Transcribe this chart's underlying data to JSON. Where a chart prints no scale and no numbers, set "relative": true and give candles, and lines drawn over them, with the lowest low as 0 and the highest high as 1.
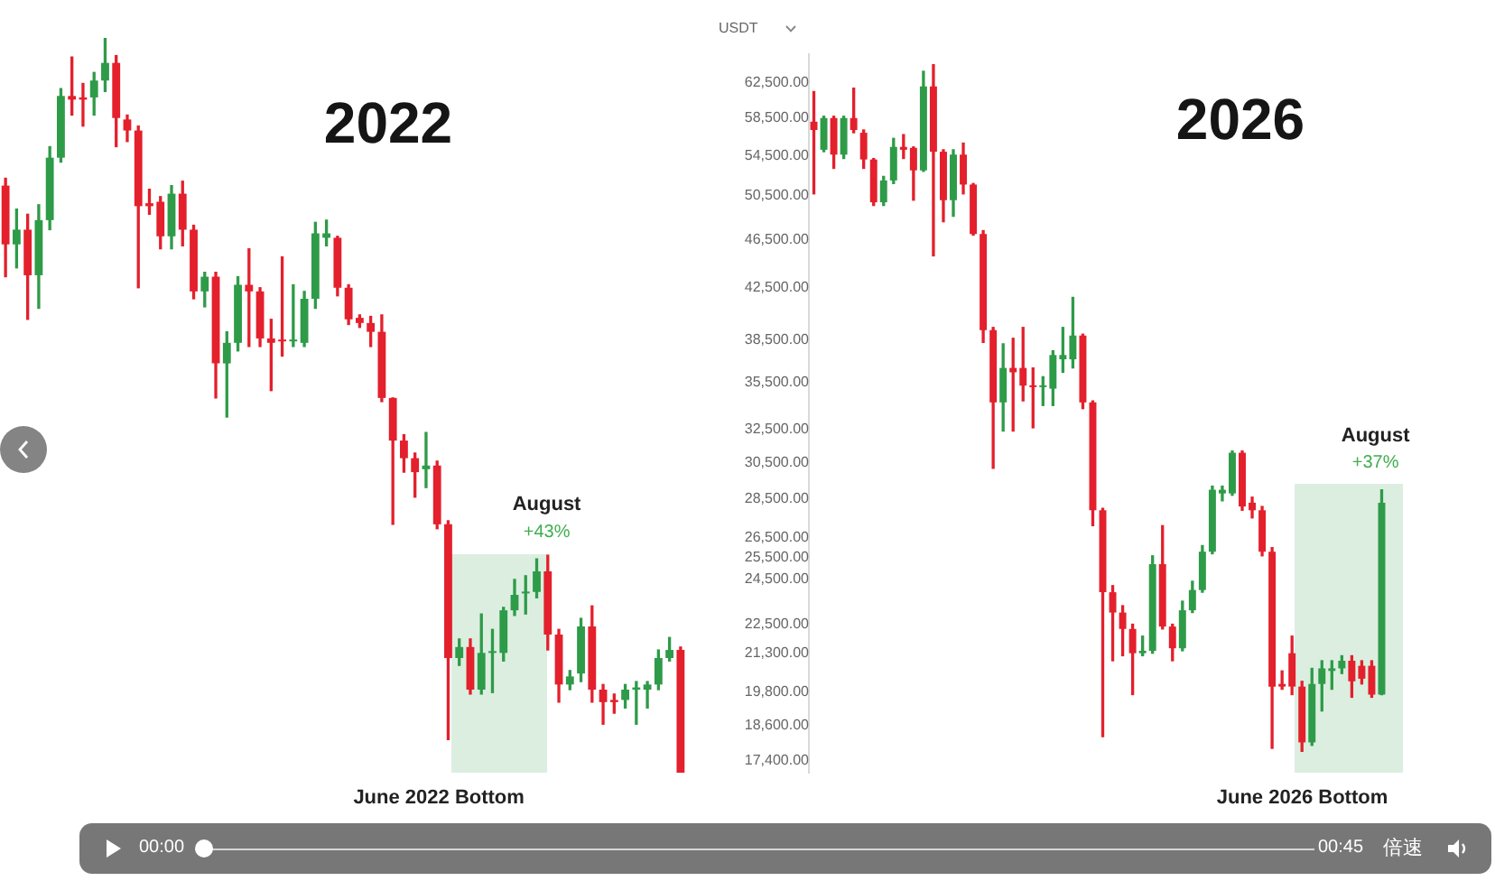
{
  "chart_data": [
    {
      "type": "candlestick",
      "title": "2022",
      "relative": true,
      "tick_labels": false,
      "categories": [
        null,
        null,
        null,
        null,
        null,
        null,
        null,
        null,
        null,
        null,
        null,
        null,
        null,
        null,
        null,
        null,
        null,
        null,
        null,
        null,
        null,
        null,
        null,
        null,
        null,
        null,
        null,
        null,
        null,
        null,
        null,
        null,
        null,
        null,
        null,
        null,
        null,
        null,
        null,
        null,
        null,
        null,
        null,
        null,
        null,
        null,
        null,
        null,
        null,
        null,
        null,
        null,
        null,
        null,
        null,
        null,
        null,
        null,
        null,
        null,
        null,
        null
      ],
      "ohlc": [
        [
          0.799,
          0.809,
          0.675,
          0.719
        ],
        [
          0.719,
          0.767,
          0.687,
          0.739
        ],
        [
          0.739,
          0.76,
          0.617,
          0.677
        ],
        [
          0.677,
          0.773,
          0.632,
          0.752
        ],
        [
          0.752,
          0.852,
          0.739,
          0.837
        ],
        [
          0.837,
          0.931,
          0.831,
          0.921
        ],
        [
          0.921,
          0.974,
          0.895,
          0.916
        ],
        [
          0.919,
          0.938,
          0.88,
          0.916
        ],
        [
          0.919,
          0.953,
          0.895,
          0.942
        ],
        [
          0.942,
          1,
          0.927,
          0.966
        ],
        [
          0.966,
          0.976,
          0.852,
          0.891
        ],
        [
          0.889,
          0.895,
          0.859,
          0.874
        ],
        [
          0.874,
          0.88,
          0.66,
          0.771
        ],
        [
          0.775,
          0.794,
          0.76,
          0.771
        ],
        [
          0.777,
          0.784,
          0.713,
          0.73
        ],
        [
          0.73,
          0.799,
          0.713,
          0.788
        ],
        [
          0.788,
          0.805,
          0.717,
          0.739
        ],
        [
          0.739,
          0.745,
          0.645,
          0.655
        ],
        [
          0.655,
          0.681,
          0.634,
          0.675
        ],
        [
          0.675,
          0.681,
          0.51,
          0.557
        ],
        [
          0.557,
          0.6,
          0.484,
          0.585
        ],
        [
          0.585,
          0.675,
          0.574,
          0.664
        ],
        [
          0.664,
          0.713,
          0.58,
          0.655
        ],
        [
          0.655,
          0.66,
          0.58,
          0.591
        ],
        [
          0.591,
          0.617,
          0.52,
          0.585
        ],
        [
          0.589,
          0.702,
          0.567,
          0.587
        ],
        [
          0.587,
          0.664,
          0.58,
          0.589
        ],
        [
          0.585,
          0.655,
          0.58,
          0.645
        ],
        [
          0.645,
          0.749,
          0.632,
          0.734
        ],
        [
          0.728,
          0.752,
          0.717,
          0.734
        ],
        [
          0.728,
          0.73,
          0.649,
          0.66
        ],
        [
          0.66,
          0.664,
          0.61,
          0.617
        ],
        [
          0.619,
          0.623,
          0.606,
          0.612
        ],
        [
          0.612,
          0.621,
          0.58,
          0.6
        ],
        [
          0.6,
          0.623,
          0.505,
          0.51
        ],
        [
          0.51,
          0.51,
          0.338,
          0.452
        ],
        [
          0.452,
          0.46,
          0.409,
          0.428
        ],
        [
          0.428,
          0.435,
          0.375,
          0.409
        ],
        [
          0.413,
          0.463,
          0.388,
          0.418
        ],
        [
          0.418,
          0.424,
          0.332,
          0.338
        ],
        [
          0.338,
          0.343,
          0.045,
          0.156
        ],
        [
          0.156,
          0.182,
          0.146,
          0.171
        ],
        [
          0.171,
          0.182,
          0.107,
          0.113
        ],
        [
          0.113,
          0.216,
          0.107,
          0.163
        ],
        [
          0.163,
          0.195,
          0.109,
          0.165
        ],
        [
          0.163,
          0.225,
          0.152,
          0.221
        ],
        [
          0.221,
          0.263,
          0.214,
          0.242
        ],
        [
          0.244,
          0.268,
          0.216,
          0.246
        ],
        [
          0.246,
          0.291,
          0.238,
          0.274
        ],
        [
          0.274,
          0.296,
          0.167,
          0.188
        ],
        [
          0.188,
          0.195,
          0.096,
          0.12
        ],
        [
          0.12,
          0.139,
          0.113,
          0.131
        ],
        [
          0.135,
          0.21,
          0.124,
          0.199
        ],
        [
          0.199,
          0.227,
          0.096,
          0.113
        ],
        [
          0.113,
          0.12,
          0.066,
          0.096
        ],
        [
          0.099,
          0.107,
          0.081,
          0.096
        ],
        [
          0.099,
          0.12,
          0.088,
          0.113
        ],
        [
          0.113,
          0.124,
          0.066,
          0.116
        ],
        [
          0.113,
          0.124,
          0.088,
          0.12
        ],
        [
          0.12,
          0.167,
          0.113,
          0.156
        ],
        [
          0.156,
          0.184,
          0.152,
          0.167
        ],
        [
          0.167,
          0.171,
          0,
          0
        ]
      ],
      "colors": [
        "#e3202c",
        "#2e9b48",
        "#e3202c",
        "#2e9b48",
        "#2e9b48",
        "#2e9b48",
        "#e3202c",
        "#e3202c",
        "#2e9b48",
        "#2e9b48",
        "#e3202c",
        "#e3202c",
        "#e3202c",
        "#e3202c",
        "#e3202c",
        "#2e9b48",
        "#e3202c",
        "#e3202c",
        "#2e9b48",
        "#e3202c",
        "#2e9b48",
        "#2e9b48",
        "#e3202c",
        "#e3202c",
        "#e3202c",
        "#e3202c",
        "#2e9b48",
        "#2e9b48",
        "#2e9b48",
        "#2e9b48",
        "#e3202c",
        "#e3202c",
        "#e3202c",
        "#e3202c",
        "#e3202c",
        "#e3202c",
        "#e3202c",
        "#e3202c",
        "#2e9b48",
        "#e3202c",
        "#e3202c",
        "#2e9b48",
        "#e3202c",
        "#2e9b48",
        "#2e9b48",
        "#2e9b48",
        "#2e9b48",
        "#2e9b48",
        "#2e9b48",
        "#e3202c",
        "#e3202c",
        "#2e9b48",
        "#2e9b48",
        "#e3202c",
        "#e3202c",
        "#e3202c",
        "#2e9b48",
        "#2e9b48",
        "#2e9b48",
        "#2e9b48",
        "#2e9b48",
        "#e3202c"
      ],
      "annotations": [
        "August",
        "+43%",
        "June 2022 Bottom",
        "00:00"
      ]
    },
    {
      "type": "candlestick",
      "title": "2026",
      "ylabel": "USDT",
      "log": true,
      "tick_labels": "y",
      "ylim": [
        17000,
        66000
      ],
      "yticks": [
        {
          "value": 62500,
          "label": "62,500.00"
        },
        {
          "value": 58500,
          "label": "58,500.00"
        },
        {
          "value": 54500,
          "label": "54,500.00"
        },
        {
          "value": 50500,
          "label": "50,500.00"
        },
        {
          "value": 46500,
          "label": "46,500.00"
        },
        {
          "value": 42500,
          "label": "42,500.00"
        },
        {
          "value": 38500,
          "label": "38,500.00"
        },
        {
          "value": 35500,
          "label": "35,500.00"
        },
        {
          "value": 32500,
          "label": "32,500.00"
        },
        {
          "value": 30500,
          "label": "30,500.00"
        },
        {
          "value": 28500,
          "label": "28,500.00"
        },
        {
          "value": 26500,
          "label": "26,500.00"
        },
        {
          "value": 25500,
          "label": "25,500.00"
        },
        {
          "value": 24500,
          "label": "24,500.00"
        },
        {
          "value": 22500,
          "label": "22,500.00"
        },
        {
          "value": 21300,
          "label": "21,300.00"
        },
        {
          "value": 19800,
          "label": "19,800.00"
        },
        {
          "value": 18600,
          "label": "18,600.00"
        },
        {
          "value": 17400,
          "label": "17,400.00"
        }
      ],
      "categories": [
        null,
        null,
        null,
        null,
        null,
        null,
        null,
        null,
        null,
        null,
        null,
        null,
        null,
        null,
        null,
        null,
        null,
        null,
        null,
        null,
        null,
        null,
        null,
        null,
        null,
        null,
        null,
        null,
        null,
        null,
        null,
        null,
        null,
        null,
        null,
        null,
        null,
        null,
        null,
        null,
        null,
        null,
        null,
        null,
        null,
        null,
        null,
        null,
        null,
        null,
        null,
        null,
        null,
        null,
        null,
        null,
        null,
        null
      ],
      "ohlc": [
        [
          58100,
          61500,
          50700,
          57200
        ],
        [
          55100,
          58700,
          54900,
          58500
        ],
        [
          58500,
          58700,
          53200,
          54600
        ],
        [
          54600,
          58700,
          54200,
          58500
        ],
        [
          58500,
          61900,
          56900,
          57200
        ],
        [
          56900,
          57200,
          53200,
          54100
        ],
        [
          54100,
          54200,
          49600,
          49900
        ],
        [
          49900,
          52400,
          49600,
          52000
        ],
        [
          52000,
          56300,
          51700,
          55400
        ],
        [
          55400,
          56700,
          54200,
          55100
        ],
        [
          55300,
          55400,
          50100,
          53000
        ],
        [
          53000,
          63900,
          52900,
          62100
        ],
        [
          62100,
          64700,
          45100,
          54900
        ],
        [
          54900,
          55100,
          48100,
          50100
        ],
        [
          50100,
          55100,
          48600,
          54600
        ],
        [
          54600,
          55800,
          50700,
          51600
        ],
        [
          51600,
          51700,
          46900,
          47000
        ],
        [
          47000,
          47300,
          38300,
          39200
        ],
        [
          39200,
          39400,
          30200,
          34200
        ],
        [
          34200,
          38200,
          32400,
          36500
        ],
        [
          36500,
          38600,
          32400,
          36200
        ],
        [
          36500,
          39400,
          34300,
          35300
        ],
        [
          35300,
          36500,
          32600,
          35200
        ],
        [
          35200,
          35900,
          34000,
          35300
        ],
        [
          35100,
          37700,
          34000,
          37400
        ],
        [
          37100,
          39400,
          36200,
          37400
        ],
        [
          37100,
          41700,
          36500,
          38800
        ],
        [
          38800,
          38900,
          33800,
          34200
        ],
        [
          34200,
          34300,
          27100,
          27900
        ],
        [
          27900,
          28000,
          18200,
          23900
        ],
        [
          23900,
          24200,
          21000,
          23000
        ],
        [
          23000,
          23300,
          21200,
          22300
        ],
        [
          22300,
          22500,
          19700,
          21300
        ],
        [
          21300,
          22000,
          21200,
          21400
        ],
        [
          21400,
          25600,
          21300,
          25200
        ],
        [
          25200,
          27100,
          22300,
          22400
        ],
        [
          22400,
          22500,
          21000,
          21500
        ],
        [
          21500,
          23500,
          21400,
          23100
        ],
        [
          23100,
          24400,
          23000,
          24000
        ],
        [
          24000,
          26100,
          23900,
          25800
        ],
        [
          25800,
          29200,
          25700,
          29000
        ],
        [
          28800,
          29200,
          28400,
          29000
        ],
        [
          28800,
          31200,
          28700,
          31100
        ],
        [
          31100,
          31200,
          27900,
          28100
        ],
        [
          28300,
          28600,
          27500,
          27900
        ],
        [
          27900,
          28100,
          25600,
          25800
        ],
        [
          25800,
          26000,
          17800,
          20000
        ],
        [
          20100,
          20600,
          19900,
          20000
        ],
        [
          21300,
          22000,
          19700,
          20000
        ],
        [
          20000,
          20200,
          17700,
          18000
        ],
        [
          18000,
          20700,
          17900,
          20100
        ],
        [
          20100,
          21000,
          19100,
          20700
        ],
        [
          20600,
          21000,
          19900,
          20700
        ],
        [
          20700,
          21200,
          20500,
          21000
        ],
        [
          21000,
          21200,
          19600,
          20200
        ],
        [
          20800,
          21000,
          20100,
          20300
        ],
        [
          20800,
          21000,
          19600,
          19700
        ],
        [
          19700,
          29000,
          19700,
          28300
        ]
      ],
      "colors": [
        "#e3202c",
        "#2e9b48",
        "#e3202c",
        "#2e9b48",
        "#e3202c",
        "#e3202c",
        "#e3202c",
        "#2e9b48",
        "#2e9b48",
        "#e3202c",
        "#e3202c",
        "#2e9b48",
        "#e3202c",
        "#e3202c",
        "#2e9b48",
        "#e3202c",
        "#e3202c",
        "#e3202c",
        "#e3202c",
        "#2e9b48",
        "#e3202c",
        "#e3202c",
        "#e3202c",
        "#2e9b48",
        "#2e9b48",
        "#2e9b48",
        "#2e9b48",
        "#e3202c",
        "#e3202c",
        "#e3202c",
        "#e3202c",
        "#e3202c",
        "#e3202c",
        "#2e9b48",
        "#2e9b48",
        "#e3202c",
        "#e3202c",
        "#2e9b48",
        "#2e9b48",
        "#2e9b48",
        "#2e9b48",
        "#2e9b48",
        "#2e9b48",
        "#e3202c",
        "#e3202c",
        "#e3202c",
        "#e3202c",
        "#e3202c",
        "#e3202c",
        "#e3202c",
        "#2e9b48",
        "#2e9b48",
        "#2e9b48",
        "#2e9b48",
        "#e3202c",
        "#e3202c",
        "#e3202c",
        "#2e9b48"
      ],
      "annotations": [
        "August",
        "+37%",
        "June 2026 Bottom",
        "00:45",
        "倍速"
      ]
    }
  ]
}
